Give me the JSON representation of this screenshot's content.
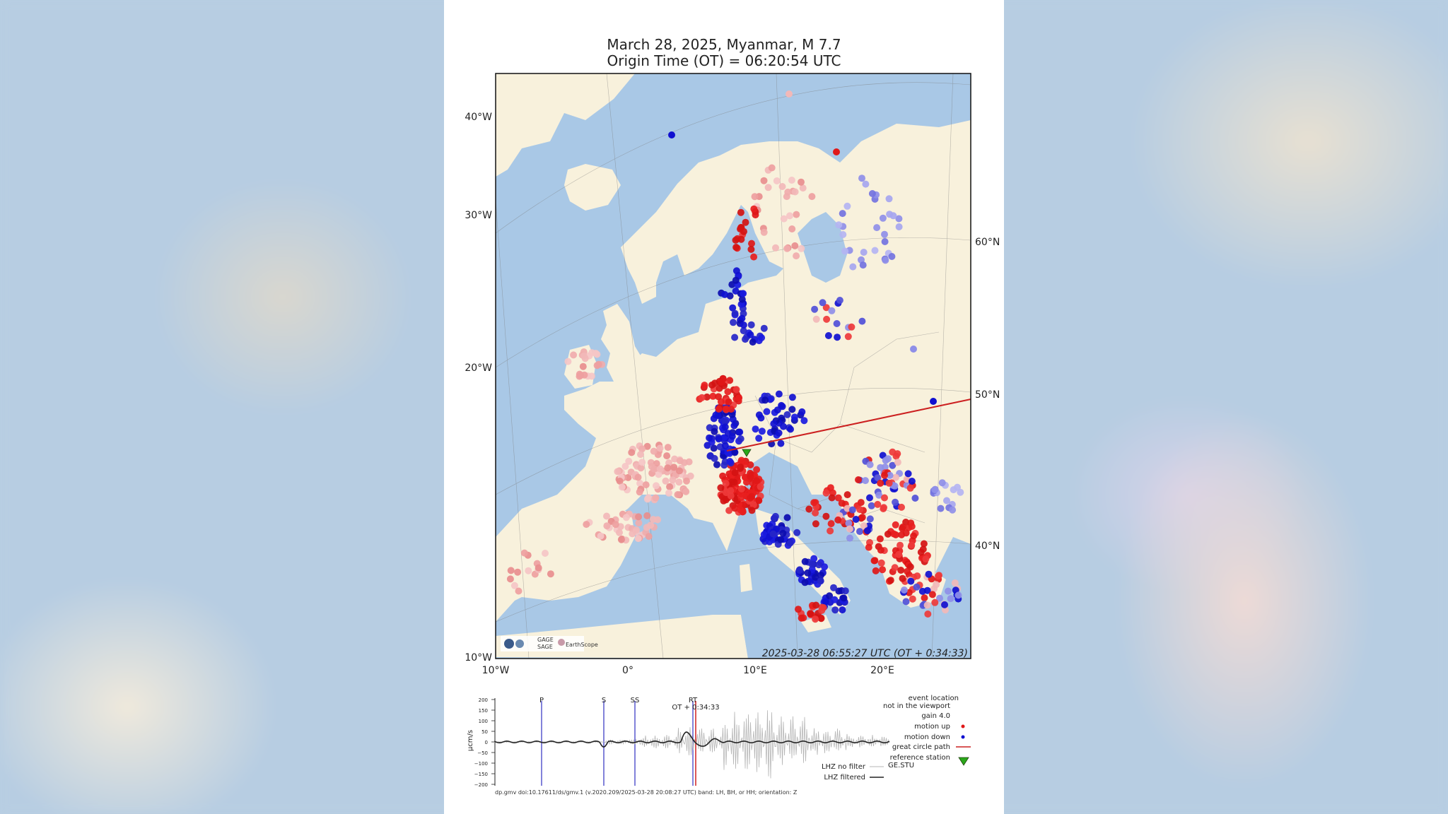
{
  "title": {
    "line1": "March 28, 2025, Myanmar, M 7.7",
    "line2": "Origin Time (OT) = 06:20:54 UTC"
  },
  "map": {
    "timestamp": "2025-03-28 06:55:27 UTC (OT + 0:34:33)",
    "lon_labels_bottom": [
      "10°W",
      "0°",
      "10°E",
      "20°E"
    ],
    "lon_labels_left": [
      "40°W",
      "30°W",
      "20°W",
      "10°W"
    ],
    "lat_labels_right": [
      "60°N",
      "50°N",
      "40°N"
    ],
    "logo_text": [
      "GAGE",
      "SAGE",
      "EarthScope"
    ],
    "colors": {
      "ocean": "#a9c8e6",
      "land": "#f8f1dc",
      "up": "#e01818",
      "down": "#1010d0",
      "path": "#cc2020",
      "station": "#2aa81a"
    }
  },
  "seismogram": {
    "ylabel": "µcm/s",
    "yticks": [
      "200",
      "150",
      "100",
      "50",
      "0",
      "−50",
      "−100",
      "−150",
      "−200"
    ],
    "phases": [
      "P",
      "S",
      "SS",
      "RT"
    ],
    "ot_label": "OT + 0:34:33",
    "legend": {
      "event1": "event location",
      "event2": "not in the viewport",
      "gain": "gain  4.0",
      "motion_up": "motion up",
      "motion_down": "motion down",
      "great_circle": "great circle path",
      "ref1": "reference station",
      "ref2": "GE.STU",
      "nofilter": "LHZ no filter",
      "filtered": "LHZ filtered"
    },
    "footer": "dp.gmv doi:10.17611/ds/gmv.1 (v.2020.209/2025-03-28 20:08:27 UTC) band: LH, BH, or HH; orientation: Z"
  }
}
